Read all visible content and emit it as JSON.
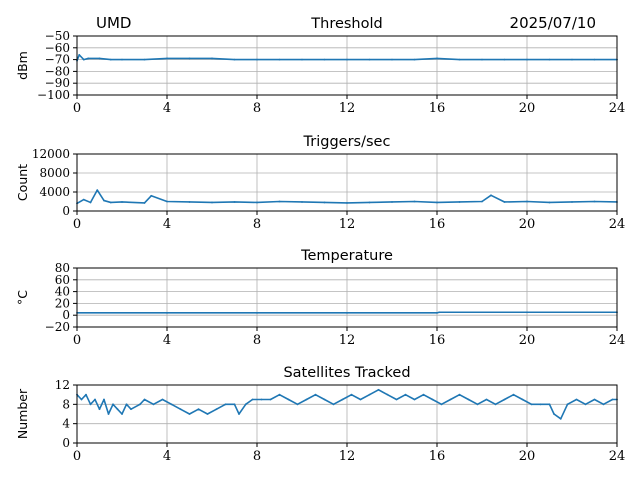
{
  "header": {
    "station": "UMD",
    "date": "2025/07/10"
  },
  "colors": {
    "series": "#1f77b4",
    "grid": "#b0b0b0",
    "axis": "#000000"
  },
  "chart_data": [
    {
      "type": "line",
      "title": "Threshold",
      "ylabel": "dBm",
      "xlim": [
        0,
        24
      ],
      "ylim": [
        -100,
        -50
      ],
      "xticks": [
        0,
        4,
        8,
        12,
        16,
        20,
        24
      ],
      "yticks": [
        -100,
        -90,
        -80,
        -70,
        -60,
        -50
      ],
      "ytick_labels": [
        "−100",
        "−90",
        "−80",
        "−70",
        "−60",
        "−50"
      ],
      "grid": true,
      "series": [
        {
          "x": [
            0,
            0.1,
            0.3,
            0.5,
            1,
            1.5,
            2,
            3,
            4,
            5,
            6,
            7,
            8,
            9,
            10,
            11,
            12,
            13,
            14,
            15,
            16,
            17,
            18,
            19,
            20,
            21,
            22,
            23,
            24
          ],
          "values": [
            -71,
            -66,
            -70,
            -69,
            -69,
            -70,
            -70,
            -70,
            -69,
            -69,
            -69,
            -70,
            -70,
            -70,
            -70,
            -70,
            -70,
            -70,
            -70,
            -70,
            -69,
            -70,
            -70,
            -70,
            -70,
            -70,
            -70,
            -70,
            -70
          ]
        }
      ]
    },
    {
      "type": "line",
      "title": "Triggers/sec",
      "ylabel": "Count",
      "xlim": [
        0,
        24
      ],
      "ylim": [
        0,
        12000
      ],
      "xticks": [
        0,
        4,
        8,
        12,
        16,
        20,
        24
      ],
      "yticks": [
        0,
        4000,
        8000,
        12000
      ],
      "ytick_labels": [
        "0",
        "4000",
        "8000",
        "12000"
      ],
      "grid": true,
      "series": [
        {
          "x": [
            0,
            0.3,
            0.6,
            0.9,
            1.2,
            1.5,
            2,
            3,
            3.3,
            4,
            5,
            6,
            7,
            8,
            9,
            10,
            11,
            12,
            13,
            14,
            15,
            16,
            17,
            18,
            18.4,
            19,
            20,
            21,
            22,
            23,
            24
          ],
          "values": [
            1600,
            2400,
            1800,
            4400,
            2200,
            1800,
            1900,
            1700,
            3200,
            2000,
            1900,
            1800,
            1900,
            1800,
            2000,
            1900,
            1800,
            1700,
            1800,
            1900,
            2000,
            1800,
            1900,
            2000,
            3300,
            1900,
            2000,
            1800,
            1900,
            2000,
            1900
          ]
        }
      ]
    },
    {
      "type": "line",
      "title": "Temperature",
      "ylabel": "°C",
      "xlim": [
        0,
        24
      ],
      "ylim": [
        -20,
        80
      ],
      "xticks": [
        0,
        4,
        8,
        12,
        16,
        20,
        24
      ],
      "yticks": [
        -20,
        0,
        20,
        40,
        60,
        80
      ],
      "ytick_labels": [
        "−20",
        "0",
        "20",
        "40",
        "60",
        "80"
      ],
      "grid": true,
      "series": [
        {
          "x": [
            0,
            4,
            8,
            12,
            16,
            16.1,
            20,
            24
          ],
          "values": [
            4,
            4,
            4,
            4,
            4,
            5,
            5,
            5
          ]
        }
      ]
    },
    {
      "type": "line",
      "title": "Satellites Tracked",
      "ylabel": "Number",
      "xlim": [
        0,
        24
      ],
      "ylim": [
        0,
        12
      ],
      "xticks": [
        0,
        4,
        8,
        12,
        16,
        20,
        24
      ],
      "yticks": [
        0,
        4,
        8,
        12
      ],
      "ytick_labels": [
        "0",
        "4",
        "8",
        "12"
      ],
      "grid": true,
      "series": [
        {
          "x": [
            0,
            0.2,
            0.4,
            0.6,
            0.8,
            1.0,
            1.2,
            1.4,
            1.6,
            1.8,
            2.0,
            2.2,
            2.4,
            2.8,
            3.0,
            3.4,
            3.8,
            4.2,
            4.6,
            5.0,
            5.4,
            5.8,
            6.2,
            6.6,
            7.0,
            7.2,
            7.5,
            7.8,
            8.2,
            8.6,
            9.0,
            9.4,
            9.8,
            10.2,
            10.6,
            11.0,
            11.4,
            11.8,
            12.2,
            12.6,
            13.0,
            13.4,
            13.8,
            14.2,
            14.6,
            15.0,
            15.4,
            15.8,
            16.2,
            16.6,
            17.0,
            17.4,
            17.8,
            18.2,
            18.6,
            19.0,
            19.4,
            19.8,
            20.2,
            20.6,
            21.0,
            21.2,
            21.5,
            21.8,
            22.2,
            22.6,
            23.0,
            23.4,
            23.8,
            24.0
          ],
          "values": [
            10,
            9,
            10,
            8,
            9,
            7,
            9,
            6,
            8,
            7,
            6,
            8,
            7,
            8,
            9,
            8,
            9,
            8,
            7,
            6,
            7,
            6,
            7,
            8,
            8,
            6,
            8,
            9,
            9,
            9,
            10,
            9,
            8,
            9,
            10,
            9,
            8,
            9,
            10,
            9,
            10,
            11,
            10,
            9,
            10,
            9,
            10,
            9,
            8,
            9,
            10,
            9,
            8,
            9,
            8,
            9,
            10,
            9,
            8,
            8,
            8,
            6,
            5,
            8,
            9,
            8,
            9,
            8,
            9,
            9
          ]
        }
      ]
    }
  ]
}
